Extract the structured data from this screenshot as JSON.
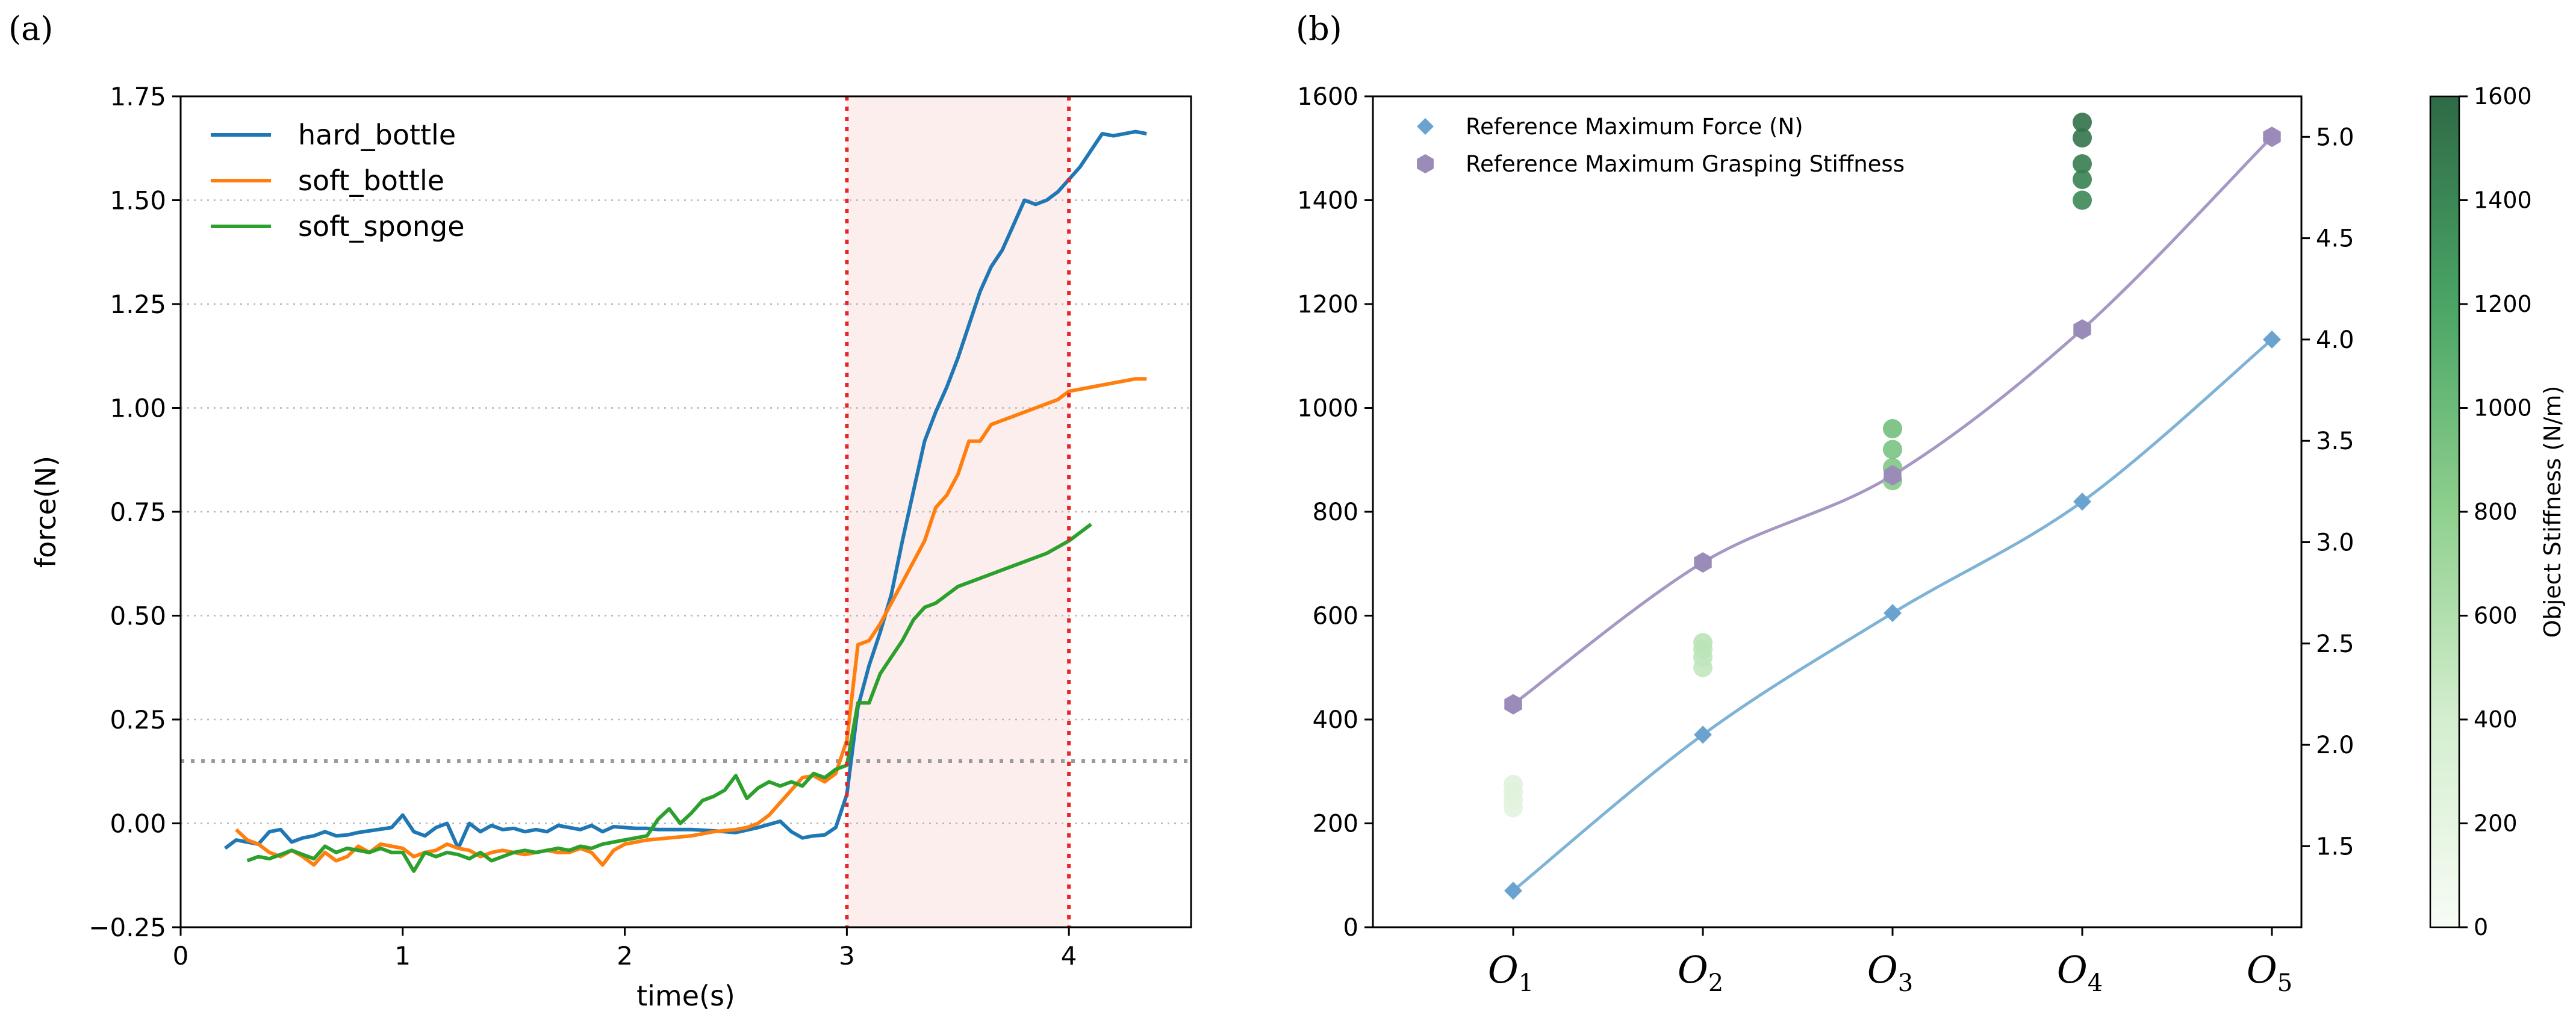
{
  "figure": {
    "panel_a_label": "(a)",
    "panel_b_label": "(b)"
  },
  "chart_data": [
    {
      "type": "line",
      "panel": "(a)",
      "xlabel": "time(s)",
      "ylabel": "force(N)",
      "xlim": [
        0,
        4.55
      ],
      "ylim": [
        -0.25,
        1.75
      ],
      "xticks": [
        0,
        1,
        2,
        3,
        4
      ],
      "yticks": [
        -0.25,
        0.0,
        0.25,
        0.5,
        0.75,
        1.0,
        1.25,
        1.5,
        1.75
      ],
      "ytick_labels": [
        "−0.25",
        "0.00",
        "0.25",
        "0.50",
        "0.75",
        "1.00",
        "1.25",
        "1.50",
        "1.75"
      ],
      "grid": "horizontal dotted",
      "legend_position": "top-left",
      "threshold_y": 0.15,
      "shaded_region_x": [
        3,
        4
      ],
      "vertical_markers_x": [
        3,
        4
      ],
      "series": [
        {
          "name": "hard_bottle",
          "color": "#1f77b4",
          "x": [
            0.2,
            0.25,
            0.3,
            0.35,
            0.4,
            0.45,
            0.5,
            0.55,
            0.6,
            0.65,
            0.7,
            0.75,
            0.8,
            0.85,
            0.9,
            0.95,
            1.0,
            1.05,
            1.1,
            1.15,
            1.2,
            1.25,
            1.3,
            1.35,
            1.4,
            1.45,
            1.5,
            1.55,
            1.6,
            1.65,
            1.7,
            1.75,
            1.8,
            1.85,
            1.9,
            1.95,
            2.0,
            2.05,
            2.1,
            2.15,
            2.2,
            2.3,
            2.4,
            2.5,
            2.6,
            2.7,
            2.75,
            2.8,
            2.85,
            2.9,
            2.95,
            3.0,
            3.05,
            3.1,
            3.15,
            3.2,
            3.25,
            3.3,
            3.35,
            3.4,
            3.45,
            3.5,
            3.55,
            3.6,
            3.65,
            3.7,
            3.75,
            3.8,
            3.85,
            3.9,
            3.95,
            4.0,
            4.05,
            4.1,
            4.15,
            4.2,
            4.25,
            4.3,
            4.35
          ],
          "y": [
            -0.06,
            -0.04,
            -0.045,
            -0.05,
            -0.02,
            -0.015,
            -0.045,
            -0.035,
            -0.03,
            -0.02,
            -0.03,
            -0.028,
            -0.022,
            -0.018,
            -0.014,
            -0.01,
            0.02,
            -0.02,
            -0.03,
            -0.01,
            0.0,
            -0.06,
            0.0,
            -0.02,
            -0.005,
            -0.015,
            -0.012,
            -0.02,
            -0.015,
            -0.02,
            -0.005,
            -0.01,
            -0.015,
            -0.005,
            -0.02,
            -0.008,
            -0.01,
            -0.012,
            -0.012,
            -0.015,
            -0.015,
            -0.015,
            -0.018,
            -0.022,
            -0.01,
            0.005,
            -0.02,
            -0.035,
            -0.03,
            -0.028,
            -0.01,
            0.07,
            0.28,
            0.38,
            0.46,
            0.55,
            0.68,
            0.8,
            0.92,
            0.99,
            1.05,
            1.12,
            1.2,
            1.28,
            1.34,
            1.38,
            1.44,
            1.5,
            1.49,
            1.5,
            1.52,
            1.55,
            1.58,
            1.62,
            1.66,
            1.655,
            1.66,
            1.665,
            1.66
          ]
        },
        {
          "name": "soft_bottle",
          "color": "#ff7f0e",
          "x": [
            0.25,
            0.3,
            0.35,
            0.4,
            0.45,
            0.5,
            0.55,
            0.6,
            0.65,
            0.7,
            0.75,
            0.8,
            0.85,
            0.9,
            0.95,
            1.0,
            1.05,
            1.1,
            1.15,
            1.2,
            1.25,
            1.3,
            1.35,
            1.4,
            1.45,
            1.5,
            1.55,
            1.6,
            1.65,
            1.7,
            1.75,
            1.8,
            1.85,
            1.9,
            1.95,
            2.0,
            2.1,
            2.2,
            2.3,
            2.4,
            2.5,
            2.55,
            2.6,
            2.65,
            2.7,
            2.75,
            2.8,
            2.85,
            2.9,
            2.95,
            3.0,
            3.05,
            3.1,
            3.15,
            3.2,
            3.25,
            3.3,
            3.35,
            3.4,
            3.45,
            3.5,
            3.55,
            3.6,
            3.65,
            3.7,
            3.75,
            3.8,
            3.85,
            3.9,
            3.95,
            4.0,
            4.1,
            4.2,
            4.3,
            4.35
          ],
          "y": [
            -0.015,
            -0.04,
            -0.05,
            -0.07,
            -0.08,
            -0.065,
            -0.08,
            -0.1,
            -0.07,
            -0.09,
            -0.08,
            -0.055,
            -0.07,
            -0.05,
            -0.055,
            -0.06,
            -0.08,
            -0.07,
            -0.065,
            -0.05,
            -0.06,
            -0.065,
            -0.08,
            -0.07,
            -0.065,
            -0.07,
            -0.075,
            -0.07,
            -0.065,
            -0.07,
            -0.07,
            -0.06,
            -0.07,
            -0.1,
            -0.065,
            -0.05,
            -0.04,
            -0.035,
            -0.03,
            -0.02,
            -0.015,
            -0.01,
            0.0,
            0.02,
            0.05,
            0.08,
            0.11,
            0.115,
            0.1,
            0.12,
            0.2,
            0.43,
            0.44,
            0.48,
            0.53,
            0.58,
            0.63,
            0.68,
            0.76,
            0.79,
            0.84,
            0.92,
            0.92,
            0.96,
            0.97,
            0.98,
            0.99,
            1.0,
            1.01,
            1.02,
            1.04,
            1.05,
            1.06,
            1.07,
            1.07
          ]
        },
        {
          "name": "soft_sponge",
          "color": "#2ca02c",
          "x": [
            0.3,
            0.35,
            0.4,
            0.45,
            0.5,
            0.55,
            0.6,
            0.65,
            0.7,
            0.75,
            0.8,
            0.85,
            0.9,
            0.95,
            1.0,
            1.05,
            1.1,
            1.15,
            1.2,
            1.25,
            1.3,
            1.35,
            1.4,
            1.45,
            1.5,
            1.55,
            1.6,
            1.65,
            1.7,
            1.75,
            1.8,
            1.85,
            1.9,
            1.95,
            2.0,
            2.1,
            2.15,
            2.2,
            2.25,
            2.3,
            2.35,
            2.4,
            2.45,
            2.5,
            2.55,
            2.6,
            2.65,
            2.7,
            2.75,
            2.8,
            2.85,
            2.9,
            2.95,
            3.0,
            3.05,
            3.1,
            3.15,
            3.2,
            3.25,
            3.3,
            3.35,
            3.4,
            3.45,
            3.5,
            3.6,
            3.7,
            3.8,
            3.9,
            4.0,
            4.05,
            4.1
          ],
          "y": [
            -0.09,
            -0.08,
            -0.085,
            -0.075,
            -0.065,
            -0.075,
            -0.085,
            -0.055,
            -0.07,
            -0.06,
            -0.065,
            -0.07,
            -0.06,
            -0.07,
            -0.07,
            -0.115,
            -0.07,
            -0.08,
            -0.07,
            -0.075,
            -0.085,
            -0.07,
            -0.09,
            -0.08,
            -0.07,
            -0.065,
            -0.07,
            -0.065,
            -0.06,
            -0.065,
            -0.055,
            -0.06,
            -0.05,
            -0.045,
            -0.04,
            -0.03,
            0.01,
            0.035,
            0.0,
            0.025,
            0.055,
            0.065,
            0.08,
            0.115,
            0.06,
            0.085,
            0.1,
            0.09,
            0.1,
            0.09,
            0.12,
            0.11,
            0.13,
            0.14,
            0.29,
            0.29,
            0.36,
            0.4,
            0.44,
            0.49,
            0.52,
            0.53,
            0.55,
            0.57,
            0.59,
            0.61,
            0.63,
            0.65,
            0.68,
            0.7,
            0.72
          ]
        }
      ]
    },
    {
      "type": "scatter",
      "panel": "(b)",
      "categories": [
        "O1",
        "O2",
        "O3",
        "O4",
        "O5"
      ],
      "category_labels": [
        {
          "base": "O",
          "sub": "1"
        },
        {
          "base": "O",
          "sub": "2"
        },
        {
          "base": "O",
          "sub": "3"
        },
        {
          "base": "O",
          "sub": "4"
        },
        {
          "base": "O",
          "sub": "5"
        }
      ],
      "ylim_left": [
        0,
        1600
      ],
      "yticks_left": [
        0,
        200,
        400,
        600,
        800,
        1000,
        1200,
        1400,
        1600
      ],
      "ylim_right": [
        1.1,
        5.2
      ],
      "yticks_right": [
        1.5,
        2.0,
        2.5,
        3.0,
        3.5,
        4.0,
        4.5,
        5.0
      ],
      "ytick_right_labels": [
        "1.5",
        "2.0",
        "2.5",
        "3.0",
        "3.5",
        "4.0",
        "4.5",
        "5.0"
      ],
      "legend_position": "top-left",
      "series": [
        {
          "name": "Reference Maximum Force (N)",
          "marker": "diamond",
          "axis": "right",
          "color": "#6aa3cf",
          "line_color": "#7fb3d5",
          "values": [
            1.28,
            2.05,
            2.65,
            3.2,
            4.0
          ]
        },
        {
          "name": "Reference Maximum Grasping Stiffness",
          "marker": "hexagon",
          "axis": "right",
          "color": "#9b8bb8",
          "line_color": "#a697c4",
          "values": [
            2.2,
            2.9,
            3.33,
            4.05,
            5.0
          ]
        }
      ],
      "object_stiffness_points": [
        {
          "category": "O1",
          "values": [
            230,
            245,
            260,
            275
          ]
        },
        {
          "category": "O2",
          "values": [
            500,
            520,
            535,
            548
          ]
        },
        {
          "category": "O3",
          "values": [
            860,
            885,
            920,
            960
          ]
        },
        {
          "category": "O4",
          "values": [
            1400,
            1440,
            1470,
            1520,
            1550
          ]
        }
      ],
      "colorbar": {
        "label": "Object Stiffness (N/m)",
        "range": [
          0,
          1600
        ],
        "ticks": [
          0,
          200,
          400,
          600,
          800,
          1000,
          1200,
          1400,
          1600
        ],
        "color_low": "#f7fcf5",
        "color_high": "#2e6a46"
      }
    }
  ]
}
